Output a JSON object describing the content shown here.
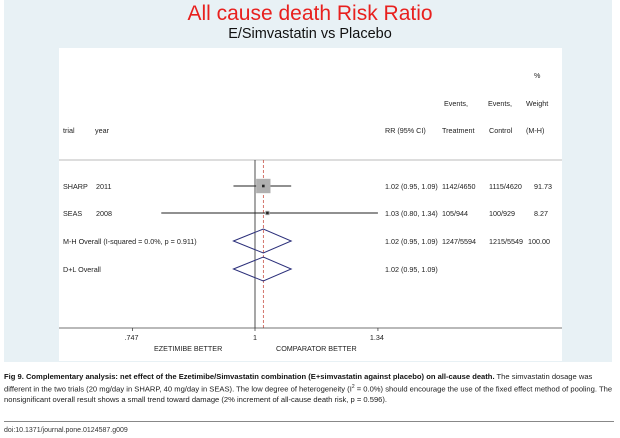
{
  "chart_data": {
    "type": "forest",
    "title": "All cause death Risk Ratio",
    "subtitle": "E/Simvastatin vs Placebo",
    "headers": {
      "trial": "trial",
      "year": "year",
      "rr": "RR (95% CI)",
      "treat1": "Events,",
      "treat2": "Treatment",
      "ctrl1": "Events,",
      "ctrl2": "Control",
      "w0": "%",
      "w1": "Weight",
      "w2": "(M-H)"
    },
    "studies": [
      {
        "label": "SHARP",
        "year": "2011",
        "rr": 1.02,
        "lo": 0.95,
        "hi": 1.09,
        "rr_text": "1.02 (0.95, 1.09)",
        "treatment": "1142/4650",
        "control": "1115/4620",
        "weight": "91.73",
        "weight_value": 91.73
      },
      {
        "label": "SEAS",
        "year": "2008",
        "rr": 1.03,
        "lo": 0.8,
        "hi": 1.34,
        "rr_text": "1.03 (0.80, 1.34)",
        "treatment": "105/944",
        "control": "100/929",
        "weight": "8.27",
        "weight_value": 8.27
      }
    ],
    "overall": [
      {
        "label": "M-H Overall  (I-squared = 0.0%, p = 0.911)",
        "rr": 1.02,
        "lo": 0.95,
        "hi": 1.09,
        "rr_text": "1.02 (0.95, 1.09)",
        "treatment": "1247/5594",
        "control": "1215/5549",
        "weight": "100.00"
      },
      {
        "label": "D+L Overall",
        "rr": 1.02,
        "lo": 0.95,
        "hi": 1.09,
        "rr_text": "1.02 (0.95, 1.09)",
        "treatment": "",
        "control": "",
        "weight": ""
      }
    ],
    "x_scale": "log",
    "x_ticks": [
      {
        "value": 0.747,
        "label": ".747"
      },
      {
        "value": 1,
        "label": "1"
      },
      {
        "value": 1.34,
        "label": "1.34"
      }
    ],
    "null_line": 1,
    "pooled_line": 1.02,
    "left_label": "EZETIMIBE BETTER",
    "right_label": "COMPARATOR BETTER",
    "colors": {
      "title": "#e8201e",
      "diamond": "#2b2f7a",
      "pooled_line": "#c0392b",
      "box": "#b0b0b0"
    }
  },
  "caption": {
    "bold": "Fig 9. Complementary analysis: net effect of the Ezetimibe/Simvastatin combination (E+simvastatin against placebo) on all-cause death.",
    "text1": " The simvastatin dosage was different in the two trials (20 mg/day in SHARP, 40 mg/day in SEAS). The low degree of heterogeneity (I",
    "sup": "2",
    "text2": " = 0.0%) should encourage the use of the fixed effect method of pooling. The nonsignificant overall result shows a small trend toward damage (2% increment of all-cause death risk, p = 0.596)."
  },
  "doi": "doi:10.1371/journal.pone.0124587.g009"
}
